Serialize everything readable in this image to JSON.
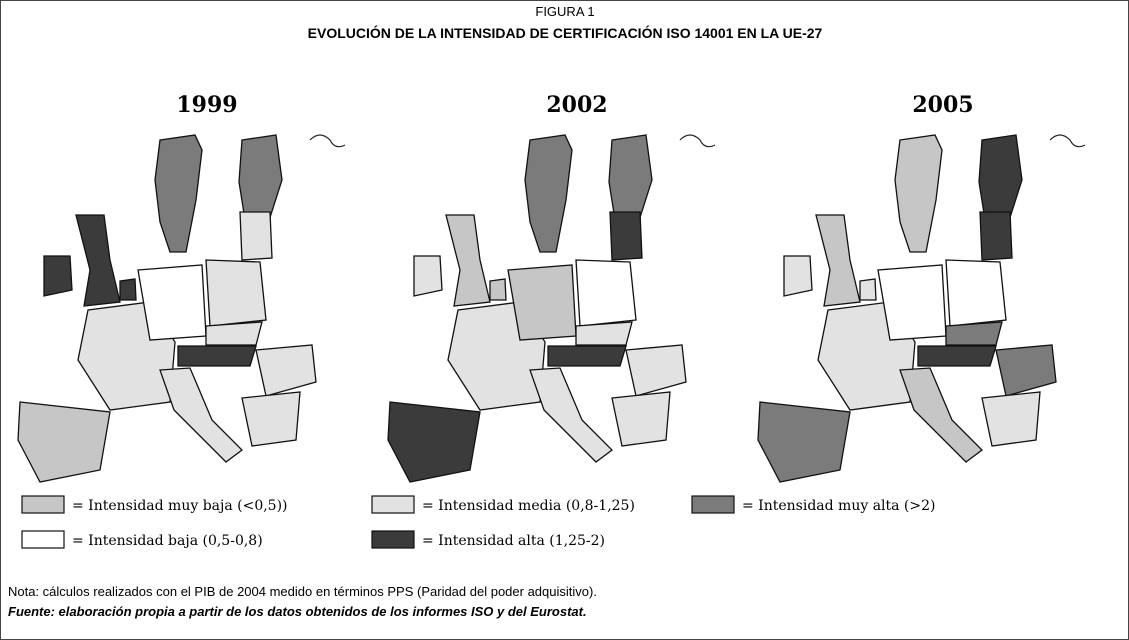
{
  "figure_label": "FIGURA 1",
  "title": "EVOLUCIÓN DE LA INTENSIDAD DE CERTIFICACIÓN ISO 14001 EN LA UE-27",
  "maps": [
    {
      "year": "1999"
    },
    {
      "year": "2002"
    },
    {
      "year": "2005"
    }
  ],
  "legend": [
    {
      "label": "= Intensidad muy baja (<0,5))",
      "color": "#c6c6c6"
    },
    {
      "label": "= Intensidad media (0,8-1,25)",
      "color": "#e2e2e2"
    },
    {
      "label": "= Intensidad muy alta (>2)",
      "color": "#7b7b7b"
    },
    {
      "label": "= Intensidad baja (0,5-0,8)",
      "color": "#ffffff"
    },
    {
      "label": "= Intensidad alta (1,25-2)",
      "color": "#3b3b3b"
    }
  ],
  "note": "Nota: cálculos realizados con el PIB de 2004 medido en términos PPS (Paridad del poder adquisitivo).",
  "source": "Fuente: elaboración propia a partir de los datos obtenidos de los informes ISO y del Eurostat."
}
